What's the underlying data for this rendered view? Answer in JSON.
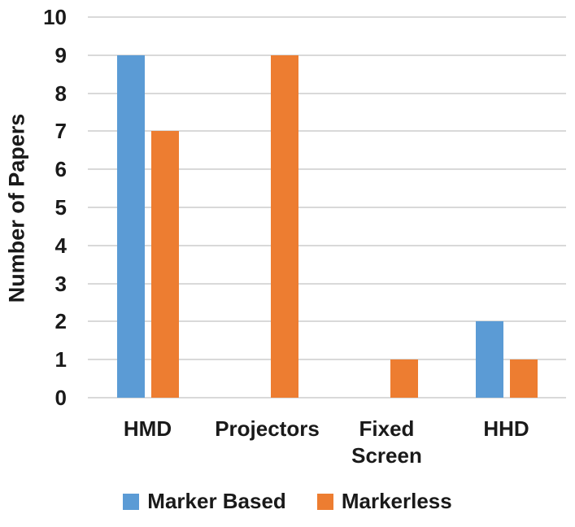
{
  "figure": {
    "background": "#ffffff",
    "text_color": "#1a1a1a",
    "gridline_color": "#d9d9d9"
  },
  "chart_data": {
    "type": "bar",
    "title": "",
    "xlabel": "",
    "ylabel": "Number of Papers",
    "categories": [
      "HMD",
      "Projectors",
      "Fixed Screen",
      "HHD"
    ],
    "series": [
      {
        "name": "Marker Based",
        "color": "#5B9BD5",
        "values": [
          9,
          0,
          0,
          2
        ]
      },
      {
        "name": "Markerless",
        "color": "#ED7D31",
        "values": [
          7,
          9,
          1,
          1
        ]
      }
    ],
    "ylim": [
      0,
      10
    ],
    "yticks": [
      0,
      1,
      2,
      3,
      4,
      5,
      6,
      7,
      8,
      9,
      10
    ],
    "grid": true,
    "legend_position": "bottom"
  }
}
